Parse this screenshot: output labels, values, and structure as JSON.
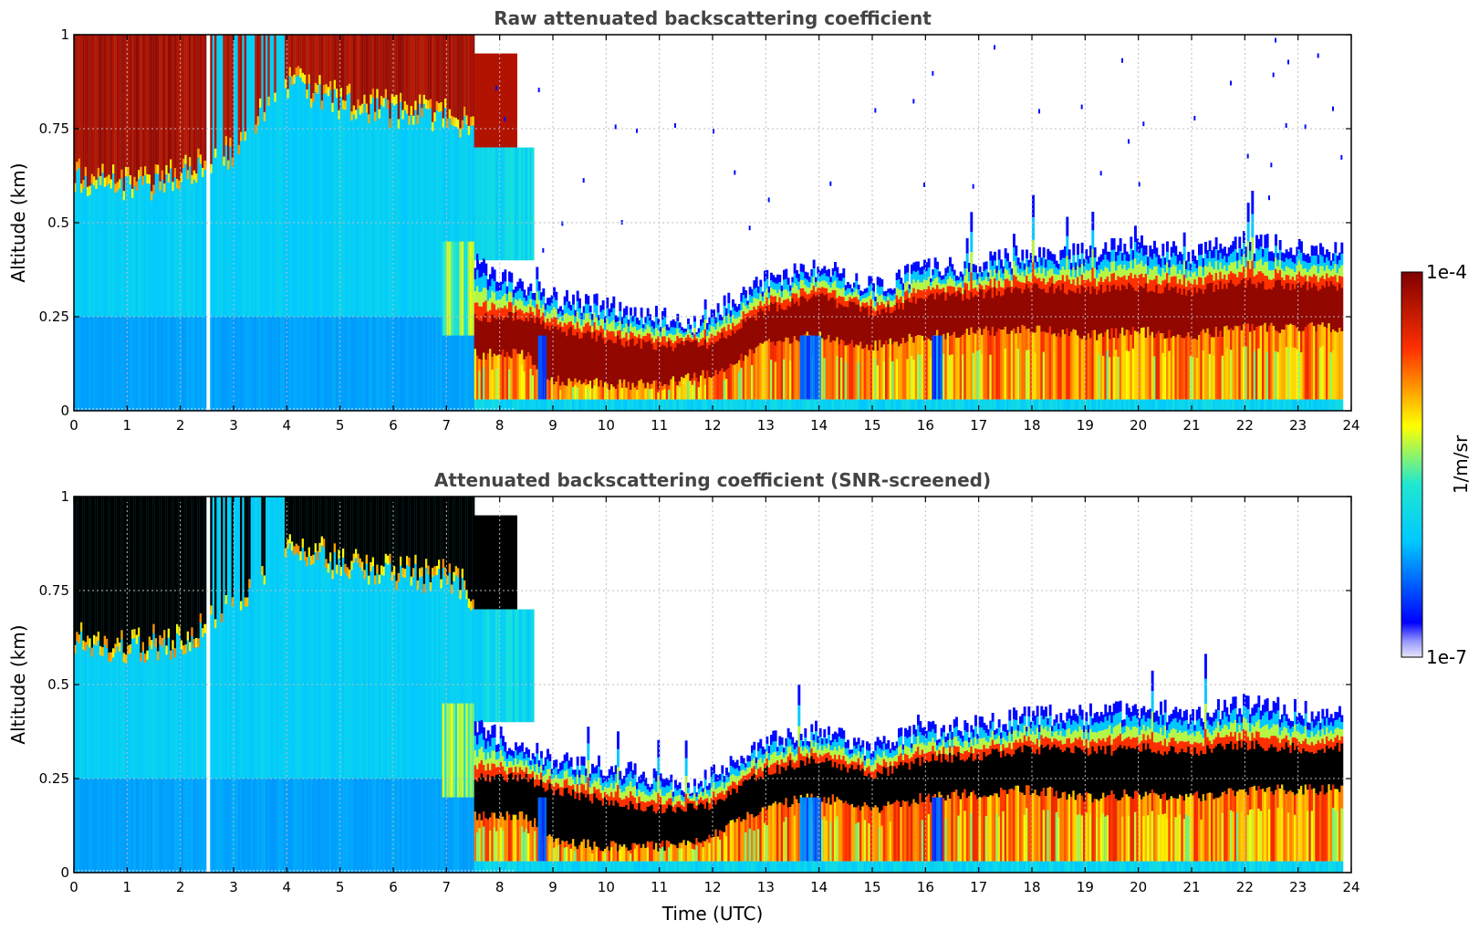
{
  "chart_data": [
    {
      "type": "heatmap",
      "title": "Raw attenuated backscattering coefficient",
      "xlabel": "",
      "ylabel": "Altitude (km)",
      "xlim": [
        0,
        24
      ],
      "ylim": [
        0,
        1
      ],
      "xticks": [
        "0",
        "1",
        "2",
        "3",
        "4",
        "5",
        "6",
        "7",
        "8",
        "9",
        "10",
        "11",
        "12",
        "13",
        "14",
        "15",
        "16",
        "17",
        "18",
        "19",
        "20",
        "21",
        "22",
        "23",
        "24"
      ],
      "yticks": [
        "0",
        "0.25",
        "0.5",
        "0.75",
        "1"
      ],
      "grid": true,
      "colorscale": "jet",
      "screened": false,
      "layers": {
        "cloud_base_km": [
          {
            "x": 0,
            "y": 0.62
          },
          {
            "x": 1,
            "y": 0.6
          },
          {
            "x": 2,
            "y": 0.62
          },
          {
            "x": 3,
            "y": 0.7
          },
          {
            "x": 4,
            "y": 0.88
          },
          {
            "x": 5,
            "y": 0.82
          },
          {
            "x": 6,
            "y": 0.8
          },
          {
            "x": 7,
            "y": 0.78
          },
          {
            "x": 7.5,
            "y": 0.74
          },
          {
            "x": 8,
            "y": 0.7
          }
        ],
        "aerosol_top_km": [
          {
            "x": 7.5,
            "y": 0.4
          },
          {
            "x": 8,
            "y": 0.36
          },
          {
            "x": 8.5,
            "y": 0.33
          },
          {
            "x": 9,
            "y": 0.3
          },
          {
            "x": 10,
            "y": 0.28
          },
          {
            "x": 11,
            "y": 0.25
          },
          {
            "x": 11.7,
            "y": 0.23
          },
          {
            "x": 12,
            "y": 0.26
          },
          {
            "x": 13,
            "y": 0.35
          },
          {
            "x": 14,
            "y": 0.38
          },
          {
            "x": 15,
            "y": 0.33
          },
          {
            "x": 16,
            "y": 0.38
          },
          {
            "x": 17,
            "y": 0.39
          },
          {
            "x": 18,
            "y": 0.42
          },
          {
            "x": 19,
            "y": 0.42
          },
          {
            "x": 20,
            "y": 0.44
          },
          {
            "x": 21,
            "y": 0.42
          },
          {
            "x": 22,
            "y": 0.45
          },
          {
            "x": 23,
            "y": 0.43
          },
          {
            "x": 23.8,
            "y": 0.42
          }
        ],
        "dense_layer_base_km": [
          {
            "x": 8.5,
            "y": 0.15
          },
          {
            "x": 9,
            "y": 0.08
          },
          {
            "x": 10,
            "y": 0.07
          },
          {
            "x": 11,
            "y": 0.07
          },
          {
            "x": 12,
            "y": 0.1
          },
          {
            "x": 13,
            "y": 0.18
          },
          {
            "x": 14,
            "y": 0.2
          },
          {
            "x": 15,
            "y": 0.17
          },
          {
            "x": 16,
            "y": 0.2
          },
          {
            "x": 17,
            "y": 0.21
          },
          {
            "x": 18,
            "y": 0.22
          },
          {
            "x": 19,
            "y": 0.2
          },
          {
            "x": 20,
            "y": 0.21
          },
          {
            "x": 21,
            "y": 0.2
          },
          {
            "x": 22,
            "y": 0.22
          },
          {
            "x": 23,
            "y": 0.22
          },
          {
            "x": 23.8,
            "y": 0.22
          }
        ],
        "dense_layer_top_km": [
          {
            "x": 8.5,
            "y": 0.25
          },
          {
            "x": 9,
            "y": 0.22
          },
          {
            "x": 10,
            "y": 0.19
          },
          {
            "x": 11,
            "y": 0.17
          },
          {
            "x": 12,
            "y": 0.18
          },
          {
            "x": 13,
            "y": 0.27
          },
          {
            "x": 14,
            "y": 0.3
          },
          {
            "x": 15,
            "y": 0.26
          },
          {
            "x": 16,
            "y": 0.3
          },
          {
            "x": 17,
            "y": 0.31
          },
          {
            "x": 18,
            "y": 0.33
          },
          {
            "x": 19,
            "y": 0.32
          },
          {
            "x": 20,
            "y": 0.33
          },
          {
            "x": 21,
            "y": 0.32
          },
          {
            "x": 22,
            "y": 0.34
          },
          {
            "x": 23,
            "y": 0.33
          },
          {
            "x": 23.8,
            "y": 0.33
          }
        ],
        "missing_data_hours": [
          2.45,
          2.55
        ]
      }
    },
    {
      "type": "heatmap",
      "title": "Attenuated backscattering coefficient (SNR-screened)",
      "xlabel": "Time (UTC)",
      "ylabel": "Altitude (km)",
      "xlim": [
        0,
        24
      ],
      "ylim": [
        0,
        1
      ],
      "xticks": [
        "0",
        "1",
        "2",
        "3",
        "4",
        "5",
        "6",
        "7",
        "8",
        "9",
        "10",
        "11",
        "12",
        "13",
        "14",
        "15",
        "16",
        "17",
        "18",
        "19",
        "20",
        "21",
        "22",
        "23",
        "24"
      ],
      "yticks": [
        "0",
        "0.25",
        "0.5",
        "0.75",
        "1"
      ],
      "grid": true,
      "colorscale": "jet",
      "screened": true,
      "screened_color": "#000000"
    }
  ],
  "colorbar": {
    "label": "1/m/sr",
    "max_label": "1e-4",
    "min_label": "1e-7",
    "range": [
      1e-07,
      0.0001
    ],
    "scale": "log"
  },
  "colors": {
    "jet_dark_blue": "#00007f",
    "jet_cyan": "#00d4ff",
    "jet_yellow": "#ffff00",
    "jet_dark_red": "#7f0000",
    "screened": "#000000",
    "title_gray": "#444444"
  }
}
